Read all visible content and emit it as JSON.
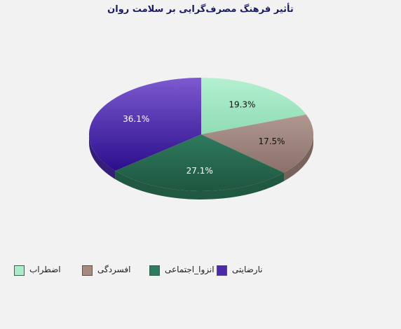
{
  "chart_data": {
    "type": "pie",
    "title": "تأثیر فرهنگ مصرف‌گرایی بر سلامت روان",
    "slices": [
      {
        "name": "اضطراب",
        "value": 19.3,
        "label": "19.3%",
        "color": "#a8ecc8"
      },
      {
        "name": "افسردگی",
        "value": 17.5,
        "label": "17.5%",
        "color": "#a68a80"
      },
      {
        "name": "انزوا_اجتماعی",
        "value": 27.1,
        "label": "27.1%",
        "color": "#2e7a5c"
      },
      {
        "name": "نارضایتی",
        "value": 36.1,
        "label": "36.1%",
        "color": "#4a2aa8"
      }
    ],
    "legend_position": "bottom"
  }
}
